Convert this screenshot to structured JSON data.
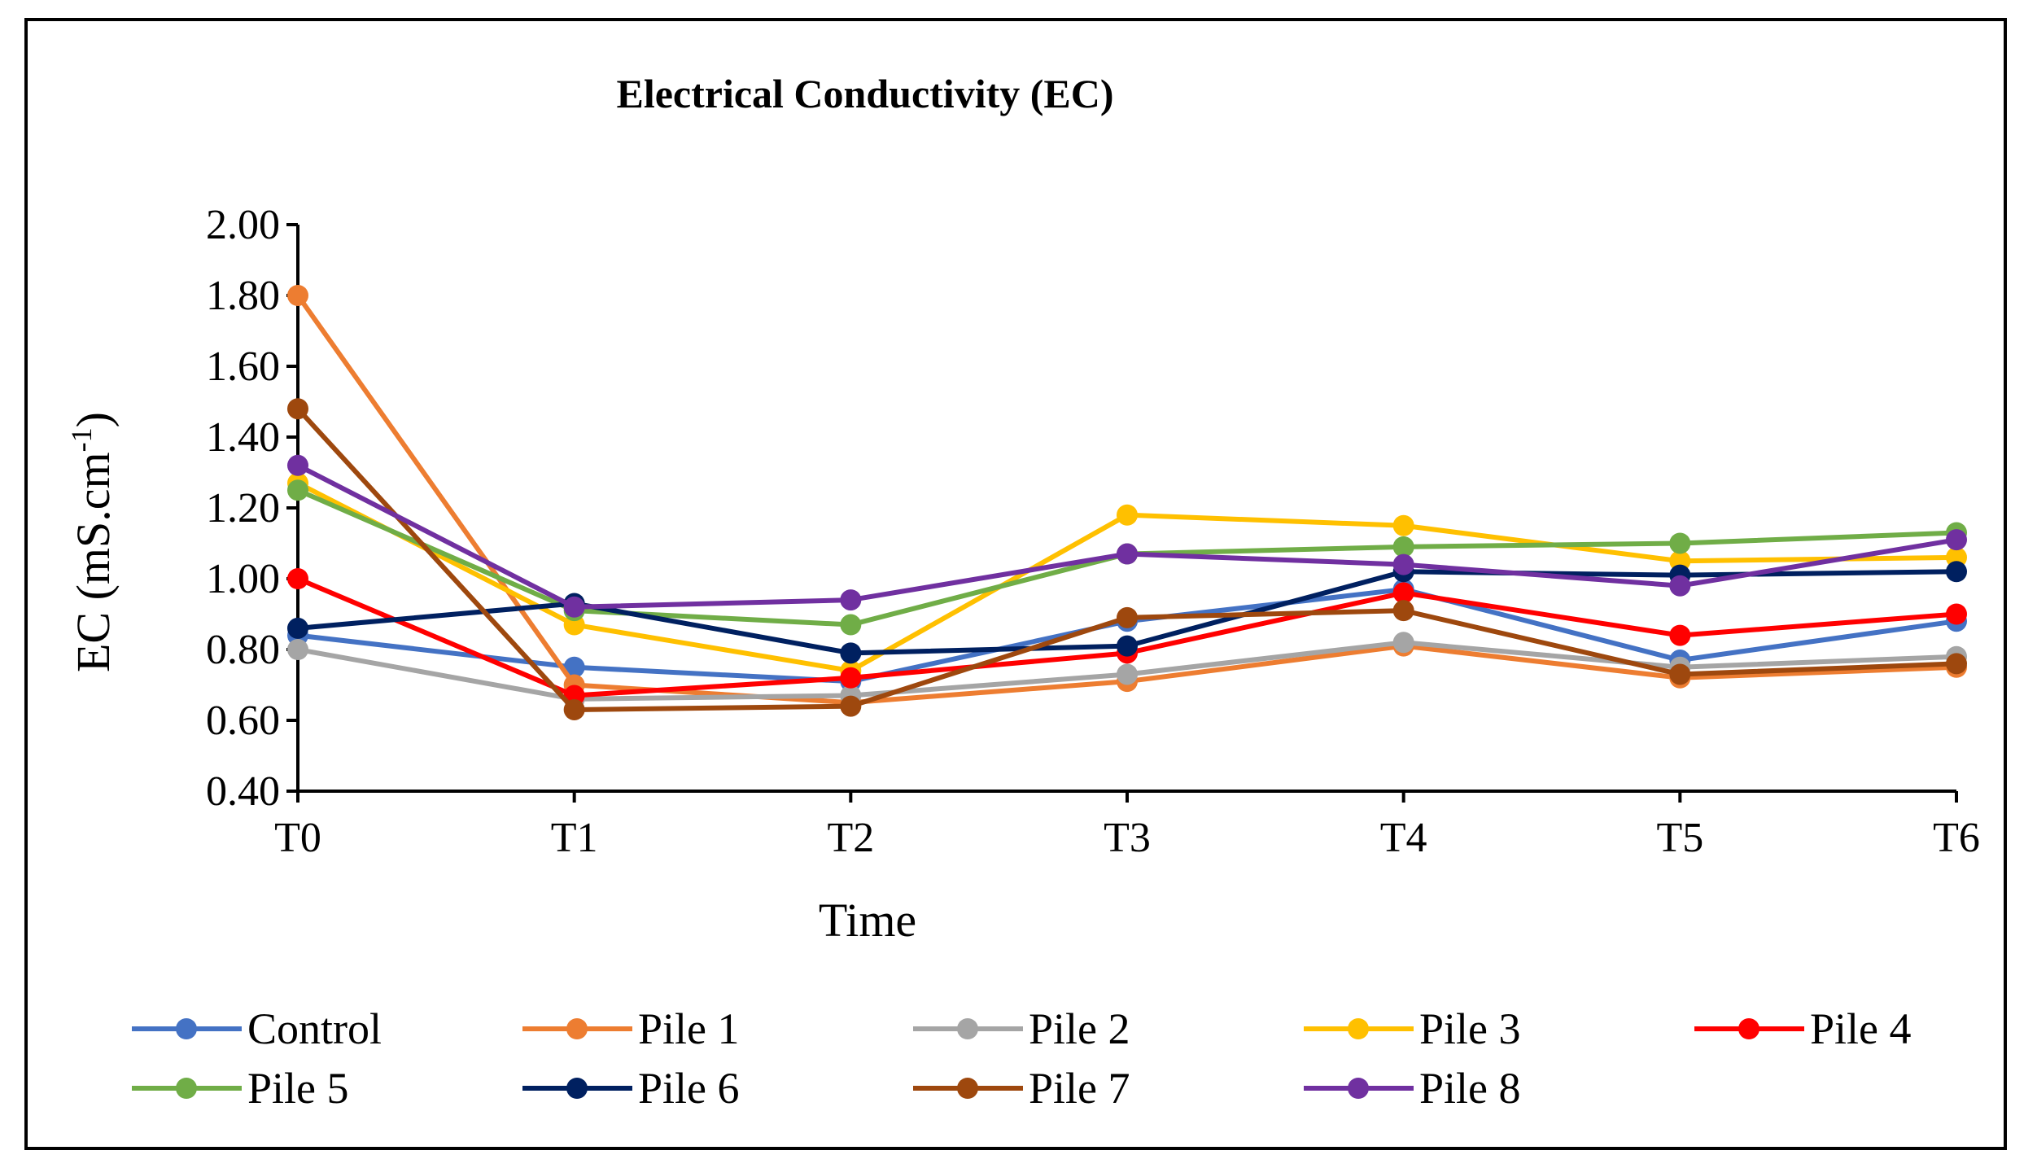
{
  "chart_data": {
    "type": "line",
    "title": "Electrical Conductivity (EC)",
    "xlabel": "Time",
    "ylabel_main": "EC (mS.cm",
    "ylabel_sup": "-1",
    "ylabel_close": ")",
    "categories": [
      "T0",
      "T1",
      "T2",
      "T3",
      "T4",
      "T5",
      "T6"
    ],
    "ylim": [
      0.4,
      2.0
    ],
    "yticks": [
      "0.40",
      "0.60",
      "0.80",
      "1.00",
      "1.20",
      "1.40",
      "1.60",
      "1.80",
      "2.00"
    ],
    "legend_position": "bottom",
    "series": [
      {
        "name": "Control",
        "color": "#4472C4",
        "values": [
          0.84,
          0.75,
          0.71,
          0.88,
          0.97,
          0.77,
          0.88
        ]
      },
      {
        "name": "Pile 1",
        "color": "#ED7D31",
        "values": [
          1.8,
          0.7,
          0.65,
          0.71,
          0.81,
          0.72,
          0.75
        ]
      },
      {
        "name": "Pile 2",
        "color": "#A5A5A5",
        "values": [
          0.8,
          0.66,
          0.67,
          0.73,
          0.82,
          0.75,
          0.78
        ]
      },
      {
        "name": "Pile 3",
        "color": "#FFC000",
        "values": [
          1.27,
          0.87,
          0.74,
          1.18,
          1.15,
          1.05,
          1.06
        ]
      },
      {
        "name": "Pile 4",
        "color": "#FF0000",
        "values": [
          1.0,
          0.67,
          0.72,
          0.79,
          0.96,
          0.84,
          0.9
        ]
      },
      {
        "name": "Pile 5",
        "color": "#70AD47",
        "values": [
          1.25,
          0.91,
          0.87,
          1.07,
          1.09,
          1.1,
          1.13
        ]
      },
      {
        "name": "Pile 6",
        "color": "#002060",
        "values": [
          0.86,
          0.93,
          0.79,
          0.81,
          1.02,
          1.01,
          1.02
        ]
      },
      {
        "name": "Pile 7",
        "color": "#9E480E",
        "values": [
          1.48,
          0.63,
          0.64,
          0.89,
          0.91,
          0.73,
          0.76
        ]
      },
      {
        "name": "Pile 8",
        "color": "#7030A0",
        "values": [
          1.32,
          0.92,
          0.94,
          1.07,
          1.04,
          0.98,
          1.11
        ]
      }
    ]
  }
}
